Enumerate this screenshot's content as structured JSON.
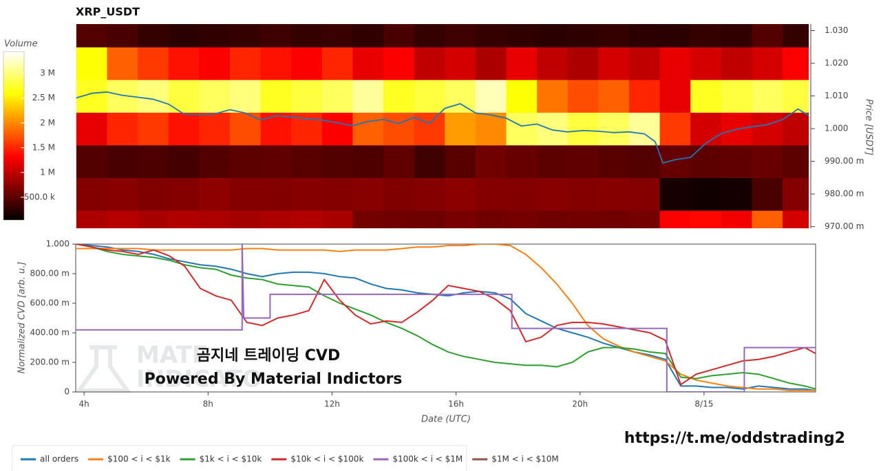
{
  "chart_data": [
    {
      "type": "heatmap",
      "title": "XRP_USDT",
      "ylabel": "Price [USDT]",
      "colormap": "hot",
      "xlim": [
        3.73,
        27.6
      ],
      "ylim": [
        0.9695,
        1.032
      ],
      "yticks": [
        {
          "value": 0.97,
          "label": "970.00 m"
        },
        {
          "value": 0.98,
          "label": "980.00 m"
        },
        {
          "value": 0.99,
          "label": "990.00 m"
        },
        {
          "value": 1.0,
          "label": "1.000"
        },
        {
          "value": 1.01,
          "label": "1.010"
        },
        {
          "value": 1.02,
          "label": "1.020"
        },
        {
          "value": 1.03,
          "label": "1.030"
        }
      ],
      "x_bins": [
        3.75,
        4.75,
        5.75,
        6.75,
        7.75,
        8.75,
        9.75,
        10.75,
        11.75,
        12.75,
        13.75,
        14.75,
        15.75,
        16.75,
        17.75,
        18.75,
        19.75,
        20.75,
        21.75,
        22.75,
        23.75,
        24.75,
        25.75,
        26.75,
        27.75
      ],
      "y_bins": [
        0.965,
        0.975,
        0.985,
        0.995,
        1.005,
        1.015,
        1.025,
        1.035
      ],
      "values": [
        [
          900000,
          950000,
          880000,
          920000,
          900000,
          860000,
          900000,
          930000,
          880000,
          620000,
          600000,
          580000,
          640000,
          600000,
          620000,
          590000,
          610000,
          600000,
          620000,
          1300000,
          1350000,
          1250000,
          1800000,
          1100000
        ],
        [
          700000,
          720000,
          680000,
          700000,
          750000,
          700000,
          690000,
          710000,
          700000,
          720000,
          680000,
          700000,
          740000,
          700000,
          690000,
          720000,
          700000,
          710000,
          700000,
          150000,
          120000,
          140000,
          400000,
          700000
        ],
        [
          450000,
          400000,
          420000,
          380000,
          450000,
          500000,
          520000,
          480000,
          450000,
          430000,
          520000,
          350000,
          480000,
          600000,
          550000,
          500000,
          520000,
          480000,
          450000,
          550000,
          500000,
          520000,
          560000,
          500000
        ],
        [
          1200000,
          1500000,
          1600000,
          1400000,
          1500000,
          1700000,
          1400000,
          1500000,
          1300000,
          1800000,
          1700000,
          1600000,
          2100000,
          2000000,
          2900000,
          3000000,
          2800000,
          2900000,
          3100000,
          1600000,
          1100000,
          1200000,
          1100000,
          1000000
        ],
        [
          2700000,
          2900000,
          3000000,
          2800000,
          2900000,
          3000000,
          2700000,
          2800000,
          2900000,
          3100000,
          2700000,
          2800000,
          2900000,
          3200000,
          2600000,
          1900000,
          1700000,
          1800000,
          1500000,
          1200000,
          2700000,
          2800000,
          2900000,
          2800000
        ],
        [
          2600000,
          1800000,
          1600000,
          1400000,
          1300000,
          1500000,
          1400000,
          1300000,
          1500000,
          1200000,
          1300000,
          1000000,
          1100000,
          900000,
          1200000,
          1000000,
          900000,
          1100000,
          1000000,
          1200000,
          1100000,
          1000000,
          1100000,
          1300000
        ],
        [
          450000,
          400000,
          300000,
          250000,
          280000,
          300000,
          350000,
          300000,
          320000,
          280000,
          400000,
          300000,
          350000,
          300000,
          280000,
          250000,
          270000,
          300000,
          260000,
          250000,
          300000,
          280000,
          450000,
          300000
        ]
      ],
      "colorbar": {
        "title": "Volume",
        "lim": [
          40000,
          3440000
        ],
        "ticks": [
          {
            "value": 500000,
            "label": "500.0 k"
          },
          {
            "value": 1000000,
            "label": "1 M"
          },
          {
            "value": 1500000,
            "label": "1.5 M"
          },
          {
            "value": 2000000,
            "label": "2 M"
          },
          {
            "value": 2500000,
            "label": "2.5 M"
          },
          {
            "value": 3000000,
            "label": "3 M"
          }
        ]
      },
      "line": {
        "color": "#1f77b4",
        "x": [
          3.75,
          4.25,
          4.75,
          5.25,
          5.75,
          6.25,
          6.75,
          7.25,
          7.75,
          8.25,
          8.75,
          9.25,
          9.75,
          10.25,
          10.75,
          11.25,
          11.75,
          12.25,
          12.75,
          13.25,
          13.75,
          14.25,
          14.75,
          15.25,
          15.75,
          16.25,
          16.75,
          17.25,
          17.75,
          18.25,
          18.75,
          19.25,
          19.75,
          20.25,
          20.75,
          21.25,
          21.75,
          22.25,
          22.6,
          22.85,
          23.25,
          23.75,
          24.25,
          24.75,
          25.25,
          25.75,
          26.25,
          26.75,
          27.25,
          27.6
        ],
        "values": [
          1.0094,
          1.0108,
          1.0112,
          1.0102,
          1.0096,
          1.009,
          1.0075,
          1.0045,
          1.0043,
          1.0045,
          1.0058,
          1.0048,
          1.0026,
          1.004,
          1.0036,
          1.003,
          1.0026,
          1.0018,
          1.0009,
          1.0022,
          1.0028,
          1.0016,
          1.0034,
          1.0016,
          1.0062,
          1.0076,
          1.0048,
          1.0042,
          1.0032,
          1.0008,
          1.0014,
          0.9996,
          0.999,
          0.9994,
          0.9992,
          0.9988,
          0.999,
          0.9984,
          0.996,
          0.9895,
          0.9905,
          0.9912,
          0.9955,
          0.9985,
          0.9998,
          1.0006,
          1.0012,
          1.0028,
          1.006,
          1.004
        ]
      }
    },
    {
      "type": "line",
      "xlabel": "Date (UTC)",
      "ylabel": "Normalized CVD [arb. u.]",
      "legend": "bottom-left",
      "xlim": [
        3.73,
        27.6
      ],
      "ylim": [
        0,
        1
      ],
      "xticks": [
        {
          "value": 4,
          "label": "4h"
        },
        {
          "value": 8,
          "label": "8h"
        },
        {
          "value": 12,
          "label": "12h"
        },
        {
          "value": 16,
          "label": "16h"
        },
        {
          "value": 20,
          "label": "20h"
        },
        {
          "value": 24,
          "label": "8/15"
        }
      ],
      "yticks": [
        0,
        {
          "value": 0.2,
          "label": "200.00 m"
        },
        {
          "value": 0.4,
          "label": "400.00 m"
        },
        {
          "value": 0.6,
          "label": "600.00 m"
        },
        {
          "value": 0.8,
          "label": "800.00 m"
        },
        {
          "value": 1,
          "label": "1.000"
        }
      ],
      "x": [
        3.75,
        4.25,
        4.75,
        5.25,
        5.75,
        6.25,
        6.75,
        7.25,
        7.75,
        8.25,
        8.75,
        9.25,
        9.75,
        10.25,
        10.75,
        11.25,
        11.75,
        12.25,
        12.75,
        13.25,
        13.75,
        14.25,
        14.75,
        15.25,
        15.75,
        16.25,
        16.75,
        17.25,
        17.75,
        18.25,
        18.75,
        19.25,
        19.75,
        20.25,
        20.75,
        21.25,
        21.75,
        22.25,
        22.75,
        23.25,
        23.75,
        24.25,
        24.75,
        25.25,
        25.75,
        26.25,
        26.75,
        27.25,
        27.6
      ],
      "series": [
        {
          "name": "all orders",
          "color": "#1f77b4",
          "values": [
            1.0,
            0.99,
            0.98,
            0.96,
            0.95,
            0.93,
            0.9,
            0.88,
            0.86,
            0.85,
            0.83,
            0.8,
            0.78,
            0.8,
            0.81,
            0.81,
            0.8,
            0.78,
            0.77,
            0.73,
            0.7,
            0.69,
            0.67,
            0.66,
            0.65,
            0.67,
            0.68,
            0.67,
            0.63,
            0.53,
            0.48,
            0.43,
            0.4,
            0.37,
            0.33,
            0.3,
            0.27,
            0.25,
            0.22,
            0.04,
            0.04,
            0.03,
            0.03,
            0.02,
            0.04,
            0.03,
            0.02,
            0.02,
            0.01
          ]
        },
        {
          "name": "$100 < i < $1k",
          "color": "#ff7f0e",
          "values": [
            0.97,
            0.97,
            0.97,
            0.97,
            0.97,
            0.96,
            0.96,
            0.96,
            0.96,
            0.96,
            0.96,
            0.97,
            0.97,
            0.96,
            0.96,
            0.96,
            0.96,
            0.95,
            0.96,
            0.96,
            0.96,
            0.97,
            0.98,
            0.98,
            0.99,
            0.99,
            1.0,
            1.0,
            0.99,
            0.93,
            0.84,
            0.73,
            0.6,
            0.45,
            0.36,
            0.31,
            0.27,
            0.24,
            0.21,
            0.12,
            0.08,
            0.06,
            0.04,
            0.03,
            0.02,
            0.02,
            0.01,
            0.01,
            0.01
          ]
        },
        {
          "name": "$1k < i < $10k",
          "color": "#2ca02c",
          "values": [
            1.0,
            0.98,
            0.95,
            0.93,
            0.92,
            0.91,
            0.89,
            0.86,
            0.84,
            0.83,
            0.79,
            0.77,
            0.76,
            0.73,
            0.72,
            0.71,
            0.65,
            0.6,
            0.56,
            0.52,
            0.47,
            0.43,
            0.38,
            0.32,
            0.27,
            0.24,
            0.22,
            0.2,
            0.19,
            0.18,
            0.18,
            0.17,
            0.2,
            0.27,
            0.3,
            0.3,
            0.29,
            0.27,
            0.26,
            0.1,
            0.09,
            0.11,
            0.12,
            0.13,
            0.12,
            0.09,
            0.06,
            0.04,
            0.02
          ]
        },
        {
          "name": "$10k < i < $100k",
          "color": "#d62728",
          "values": [
            1.0,
            0.98,
            0.96,
            0.95,
            0.93,
            0.96,
            0.92,
            0.85,
            0.7,
            0.65,
            0.62,
            0.47,
            0.45,
            0.5,
            0.52,
            0.55,
            0.76,
            0.62,
            0.52,
            0.46,
            0.48,
            0.47,
            0.54,
            0.62,
            0.72,
            0.7,
            0.68,
            0.63,
            0.55,
            0.34,
            0.37,
            0.45,
            0.47,
            0.47,
            0.46,
            0.44,
            0.42,
            0.4,
            0.35,
            0.05,
            0.12,
            0.15,
            0.18,
            0.21,
            0.22,
            0.24,
            0.27,
            0.3,
            0.26
          ]
        },
        {
          "name": "$100k < i < $1M",
          "color": "#9467bd",
          "x": [
            3.75,
            9.1,
            9.1,
            9.15,
            10.0,
            10.0,
            17.8,
            17.8,
            22.8,
            22.8,
            25.3,
            25.3,
            27.6
          ],
          "values": [
            0.42,
            0.42,
            1.0,
            0.5,
            0.5,
            0.66,
            0.66,
            0.43,
            0.43,
            0.0,
            0.0,
            0.3,
            0.3
          ]
        },
        {
          "name": "$1M < i < $10M",
          "color": "#8c564b",
          "values": [
            null,
            null,
            null,
            null,
            null,
            null,
            null,
            null,
            null,
            null,
            null,
            null,
            null,
            null,
            null,
            null,
            null,
            null,
            null,
            null,
            null,
            null,
            null,
            null,
            null,
            null,
            null,
            null,
            null,
            null,
            null,
            null,
            null,
            null,
            null,
            null,
            null,
            null,
            null,
            null,
            null,
            null,
            null,
            null,
            null,
            null,
            null,
            null,
            null
          ]
        }
      ]
    }
  ],
  "overlay": {
    "watermark": [
      "MATE",
      "INDICATO"
    ],
    "heading": "곰지네 트레이딩 CVD",
    "subheading": "Powered By Material Indictors",
    "url": "https://t.me/oddstrading2"
  }
}
